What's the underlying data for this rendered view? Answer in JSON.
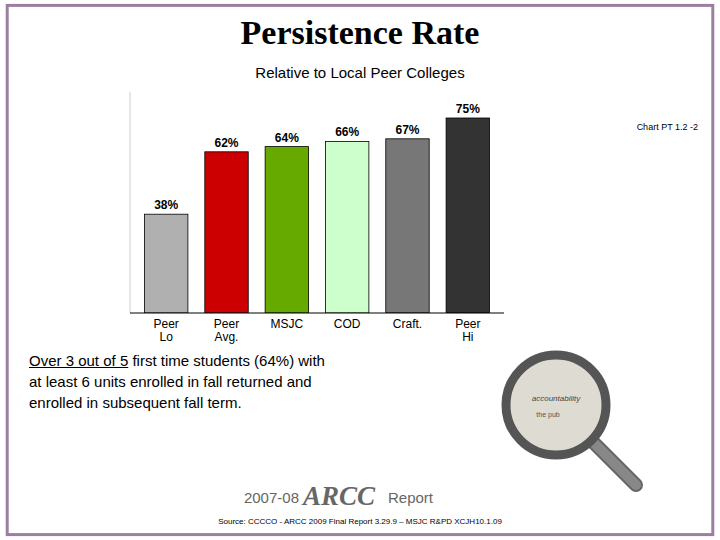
{
  "chart_data": {
    "type": "bar",
    "title": "Persistence Rate",
    "subtitle": "Relative  to Local Peer Colleges",
    "categories": [
      "Peer\nLo",
      "Peer\nAvg.",
      "MSJC",
      "COD",
      "Craft.",
      "Peer\nHi"
    ],
    "values": [
      38,
      62,
      64,
      66,
      67,
      75
    ],
    "value_labels": [
      "38%",
      "62%",
      "64%",
      "66%",
      "67%",
      "75%"
    ],
    "colors": [
      "#b0b0b0",
      "#cc0000",
      "#66aa00",
      "#ccffcc",
      "#777777",
      "#333333"
    ],
    "ylim": [
      0,
      85
    ],
    "data_labels": true,
    "tick_labels": "x",
    "grid": false,
    "annotations": [
      "Chart PT 1.2 -2",
      "Over 3 out of 5",
      " first time students (64%) with\nat least 6 units enrolled in fall returned and\nenrolled in subsequent fall term.",
      "2007-08",
      "ARCC",
      "Report",
      "Source: CCCCO - ARCC 2009 Final Report 3.29.9 – MSJC R&PD XCJH10.1.09",
      "accountability",
      "the pub"
    ]
  }
}
